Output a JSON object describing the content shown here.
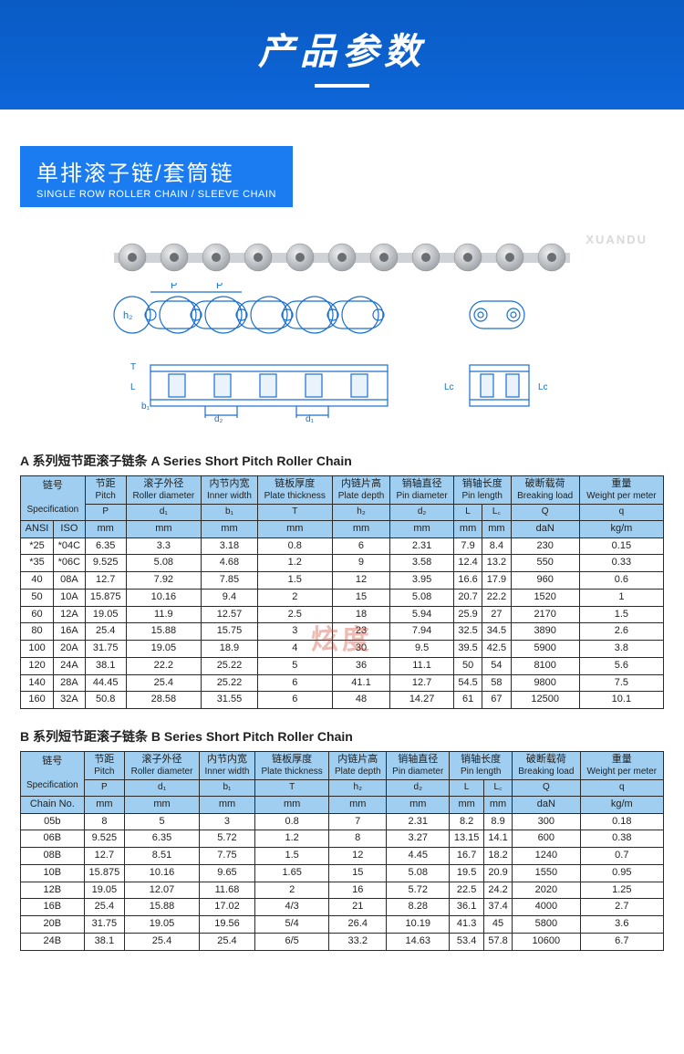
{
  "header": {
    "title": "产品参数"
  },
  "section": {
    "cn": "单排滚子链/套筒链",
    "en": "SINGLE ROW ROLLER CHAIN / SLEEVE CHAIN"
  },
  "watermark_top": "XUANDU",
  "watermark_center": "炫度",
  "diagram_labels": {
    "P": "P",
    "h2": "h₂",
    "T": "T",
    "L": "L",
    "b1": "b₁",
    "d2": "d₂",
    "d1": "d₁",
    "Lc": "Lc"
  },
  "tableA": {
    "title": "A 系列短节距滚子链条   A Series Short Pitch Roller Chain",
    "headers": {
      "spec_cn": "链号",
      "spec_en": "Specification",
      "spec_sub1": "ANSI",
      "spec_sub2": "ISO",
      "pitch_cn": "节距",
      "pitch_en": "Pitch",
      "pitch_sym": "P",
      "pitch_unit": "mm",
      "roller_cn": "滚子外径",
      "roller_en": "Roller diameter",
      "roller_sym": "d₁",
      "roller_unit": "mm",
      "inner_cn": "内节内宽",
      "inner_en": "Inner width",
      "inner_sym": "b₁",
      "inner_unit": "mm",
      "plate_cn": "链板厚度",
      "plate_en": "Plate thickness",
      "plate_sym": "T",
      "plate_unit": "mm",
      "depth_cn": "内链片高",
      "depth_en": "Plate depth",
      "depth_sym": "h₂",
      "depth_unit": "mm",
      "pin_cn": "销轴直径",
      "pin_en": "Pin diameter",
      "pin_sym": "d₂",
      "pin_unit": "mm",
      "pinlen_cn": "销轴长度",
      "pinlen_en": "Pin length",
      "pinlen_L": "L",
      "pinlen_L_unit": "mm",
      "pinlen_Lc": "L꜀",
      "pinlen_Lc_unit": "mm",
      "break_cn": "破断载荷",
      "break_en": "Breaking load",
      "break_sym": "Q",
      "break_unit": "daN",
      "weight_cn": "重量",
      "weight_en": "Weight per meter",
      "weight_sym": "q",
      "weight_unit": "kg/m"
    },
    "rows": [
      {
        "ansi": "*25",
        "iso": "*04C",
        "p": "6.35",
        "d1": "3.3",
        "b1": "3.18",
        "t": "0.8",
        "h2": "6",
        "d2": "2.31",
        "L": "7.9",
        "Lc": "8.4",
        "Q": "230",
        "q": "0.15"
      },
      {
        "ansi": "*35",
        "iso": "*06C",
        "p": "9.525",
        "d1": "5.08",
        "b1": "4.68",
        "t": "1.2",
        "h2": "9",
        "d2": "3.58",
        "L": "12.4",
        "Lc": "13.2",
        "Q": "550",
        "q": "0.33"
      },
      {
        "ansi": "40",
        "iso": "08A",
        "p": "12.7",
        "d1": "7.92",
        "b1": "7.85",
        "t": "1.5",
        "h2": "12",
        "d2": "3.95",
        "L": "16.6",
        "Lc": "17.9",
        "Q": "960",
        "q": "0.6"
      },
      {
        "ansi": "50",
        "iso": "10A",
        "p": "15.875",
        "d1": "10.16",
        "b1": "9.4",
        "t": "2",
        "h2": "15",
        "d2": "5.08",
        "L": "20.7",
        "Lc": "22.2",
        "Q": "1520",
        "q": "1"
      },
      {
        "ansi": "60",
        "iso": "12A",
        "p": "19.05",
        "d1": "11.9",
        "b1": "12.57",
        "t": "2.5",
        "h2": "18",
        "d2": "5.94",
        "L": "25.9",
        "Lc": "27",
        "Q": "2170",
        "q": "1.5"
      },
      {
        "ansi": "80",
        "iso": "16A",
        "p": "25.4",
        "d1": "15.88",
        "b1": "15.75",
        "t": "3",
        "h2": "23",
        "d2": "7.94",
        "L": "32.5",
        "Lc": "34.5",
        "Q": "3890",
        "q": "2.6"
      },
      {
        "ansi": "100",
        "iso": "20A",
        "p": "31.75",
        "d1": "19.05",
        "b1": "18.9",
        "t": "4",
        "h2": "30",
        "d2": "9.5",
        "L": "39.5",
        "Lc": "42.5",
        "Q": "5900",
        "q": "3.8"
      },
      {
        "ansi": "120",
        "iso": "24A",
        "p": "38.1",
        "d1": "22.2",
        "b1": "25.22",
        "t": "5",
        "h2": "36",
        "d2": "11.1",
        "L": "50",
        "Lc": "54",
        "Q": "8100",
        "q": "5.6"
      },
      {
        "ansi": "140",
        "iso": "28A",
        "p": "44.45",
        "d1": "25.4",
        "b1": "25.22",
        "t": "6",
        "h2": "41.1",
        "d2": "12.7",
        "L": "54.5",
        "Lc": "58",
        "Q": "9800",
        "q": "7.5"
      },
      {
        "ansi": "160",
        "iso": "32A",
        "p": "50.8",
        "d1": "28.58",
        "b1": "31.55",
        "t": "6",
        "h2": "48",
        "d2": "14.27",
        "L": "61",
        "Lc": "67",
        "Q": "12500",
        "q": "10.1"
      }
    ]
  },
  "tableB": {
    "title": "B 系列短节距滚子链条  B Series Short Pitch Roller Chain",
    "headers": {
      "spec_cn": "链号",
      "spec_en": "Specification",
      "spec_sub": "Chain No.",
      "pitch_cn": "节距",
      "pitch_en": "Pitch",
      "pitch_sym": "P",
      "pitch_unit": "mm",
      "roller_cn": "滚子外径",
      "roller_en": "Roller diameter",
      "roller_sym": "d₁",
      "roller_unit": "mm",
      "inner_cn": "内节内宽",
      "inner_en": "Inner width",
      "inner_sym": "b₁",
      "inner_unit": "mm",
      "plate_cn": "链板厚度",
      "plate_en": "Plate thickness",
      "plate_sym": "T",
      "plate_unit": "mm",
      "depth_cn": "内链片高",
      "depth_en": "Plate depth",
      "depth_sym": "h₂",
      "depth_unit": "mm",
      "pin_cn": "销轴直径",
      "pin_en": "Pin diameter",
      "pin_sym": "d₂",
      "pin_unit": "mm",
      "pinlen_cn": "销轴长度",
      "pinlen_en": "Pin length",
      "pinlen_L": "L",
      "pinlen_L_unit": "mm",
      "pinlen_Lc": "L꜀",
      "pinlen_Lc_unit": "mm",
      "break_cn": "破断载荷",
      "break_en": "Breaking load",
      "break_sym": "Q",
      "break_unit": "daN",
      "weight_cn": "重量",
      "weight_en": "Weight per meter",
      "weight_sym": "q",
      "weight_unit": "kg/m"
    },
    "rows": [
      {
        "no": "05b",
        "p": "8",
        "d1": "5",
        "b1": "3",
        "t": "0.8",
        "h2": "7",
        "d2": "2.31",
        "L": "8.2",
        "Lc": "8.9",
        "Q": "300",
        "q": "0.18"
      },
      {
        "no": "06B",
        "p": "9.525",
        "d1": "6.35",
        "b1": "5.72",
        "t": "1.2",
        "h2": "8",
        "d2": "3.27",
        "L": "13.15",
        "Lc": "14.1",
        "Q": "600",
        "q": "0.38"
      },
      {
        "no": "08B",
        "p": "12.7",
        "d1": "8.51",
        "b1": "7.75",
        "t": "1.5",
        "h2": "12",
        "d2": "4.45",
        "L": "16.7",
        "Lc": "18.2",
        "Q": "1240",
        "q": "0.7"
      },
      {
        "no": "10B",
        "p": "15.875",
        "d1": "10.16",
        "b1": "9.65",
        "t": "1.65",
        "h2": "15",
        "d2": "5.08",
        "L": "19.5",
        "Lc": "20.9",
        "Q": "1550",
        "q": "0.95"
      },
      {
        "no": "12B",
        "p": "19.05",
        "d1": "12.07",
        "b1": "11.68",
        "t": "2",
        "h2": "16",
        "d2": "5.72",
        "L": "22.5",
        "Lc": "24.2",
        "Q": "2020",
        "q": "1.25"
      },
      {
        "no": "16B",
        "p": "25.4",
        "d1": "15.88",
        "b1": "17.02",
        "t": "4/3",
        "h2": "21",
        "d2": "8.28",
        "L": "36.1",
        "Lc": "37.4",
        "Q": "4000",
        "q": "2.7"
      },
      {
        "no": "20B",
        "p": "31.75",
        "d1": "19.05",
        "b1": "19.56",
        "t": "5/4",
        "h2": "26.4",
        "d2": "10.19",
        "L": "41.3",
        "Lc": "45",
        "Q": "5800",
        "q": "3.6"
      },
      {
        "no": "24B",
        "p": "38.1",
        "d1": "25.4",
        "b1": "25.4",
        "t": "6/5",
        "h2": "33.2",
        "d2": "14.63",
        "L": "53.4",
        "Lc": "57.8",
        "Q": "10600",
        "q": "6.7"
      }
    ]
  },
  "colors": {
    "header_bg": "#0d66d8",
    "label_bg": "#1a7cf0",
    "th_bg": "#a0cef0",
    "border": "#2a2a2a",
    "diagram_line": "#1a6fd0"
  }
}
